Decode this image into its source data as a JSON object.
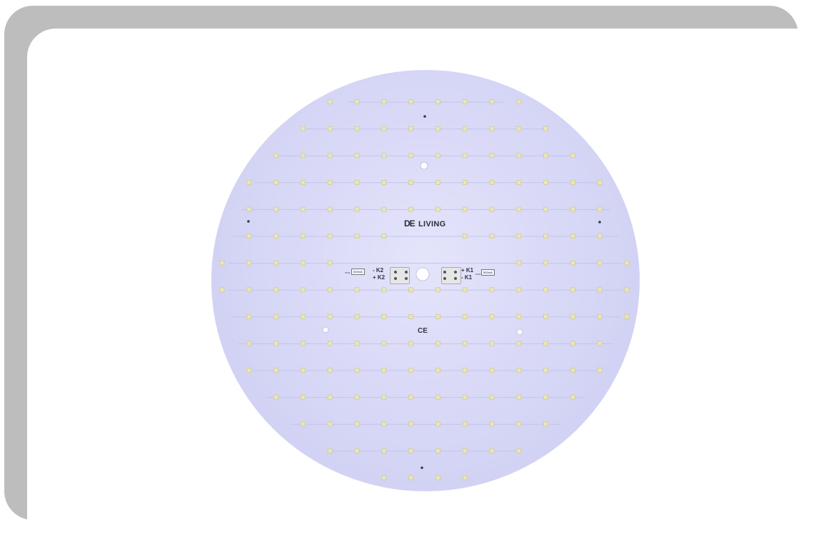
{
  "image": {
    "description": "Round LED PCB module product photo",
    "colors": {
      "background_card": "#bdbdbd",
      "board": "#d6d6f6",
      "led": "#e9e6b7"
    }
  },
  "board": {
    "brand_mark": "DE",
    "brand_name": "LIVING",
    "ce_mark": "CE",
    "connector_left": {
      "minus_label": "- K2",
      "plus_label": "+ K2",
      "max_label": "max",
      "max_value": "500mA"
    },
    "connector_right": {
      "plus_label": "+ K1",
      "minus_label": "- K1",
      "max_label": "max",
      "max_value": "500mA"
    }
  }
}
